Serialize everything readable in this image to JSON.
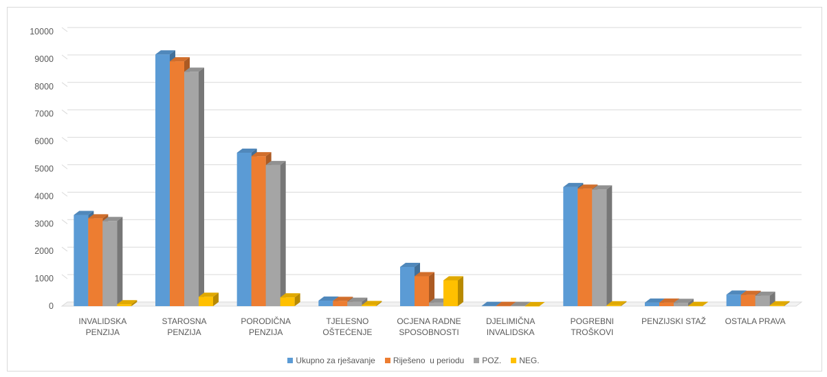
{
  "chart_data": {
    "type": "bar",
    "categories": [
      [
        "INVALIDSKA",
        "PENZIJA"
      ],
      [
        "STAROSNA",
        "PENZIJA"
      ],
      [
        "PORODIČNA",
        "PENZIJA"
      ],
      [
        "TJELESNO",
        "OŠTEĆENJE"
      ],
      [
        "OCJENA RADNE",
        "SPOSOBNOSTI"
      ],
      [
        "DJELIMIČNA",
        "INVALIDSKA"
      ],
      [
        "POGREBNI",
        "TROŠKOVI"
      ],
      [
        "PENZIJSKI STAŽ"
      ],
      [
        "OSTALA PRAVA"
      ]
    ],
    "series": [
      {
        "name": "Ukupno za rješavanje",
        "color": "#5b9bd5",
        "values": [
          3320,
          9170,
          5590,
          200,
          1430,
          10,
          4340,
          130,
          420
        ]
      },
      {
        "name": "Riješeno  u periodu",
        "color": "#ed7d31",
        "values": [
          3200,
          8920,
          5460,
          190,
          1090,
          10,
          4280,
          130,
          410
        ]
      },
      {
        "name": "POZ.",
        "color": "#a5a5a5",
        "values": [
          3100,
          8540,
          5140,
          160,
          130,
          10,
          4250,
          120,
          380
        ]
      },
      {
        "name": "NEG.",
        "color": "#ffc000",
        "values": [
          70,
          340,
          320,
          40,
          940,
          0,
          30,
          10,
          30
        ]
      }
    ],
    "y_ticks": [
      0,
      1000,
      2000,
      3000,
      4000,
      5000,
      6000,
      7000,
      8000,
      9000,
      10000
    ],
    "ylim": [
      0,
      10000
    ],
    "grid": true,
    "legend_position": "bottom",
    "style": "3d-clustered-column"
  }
}
